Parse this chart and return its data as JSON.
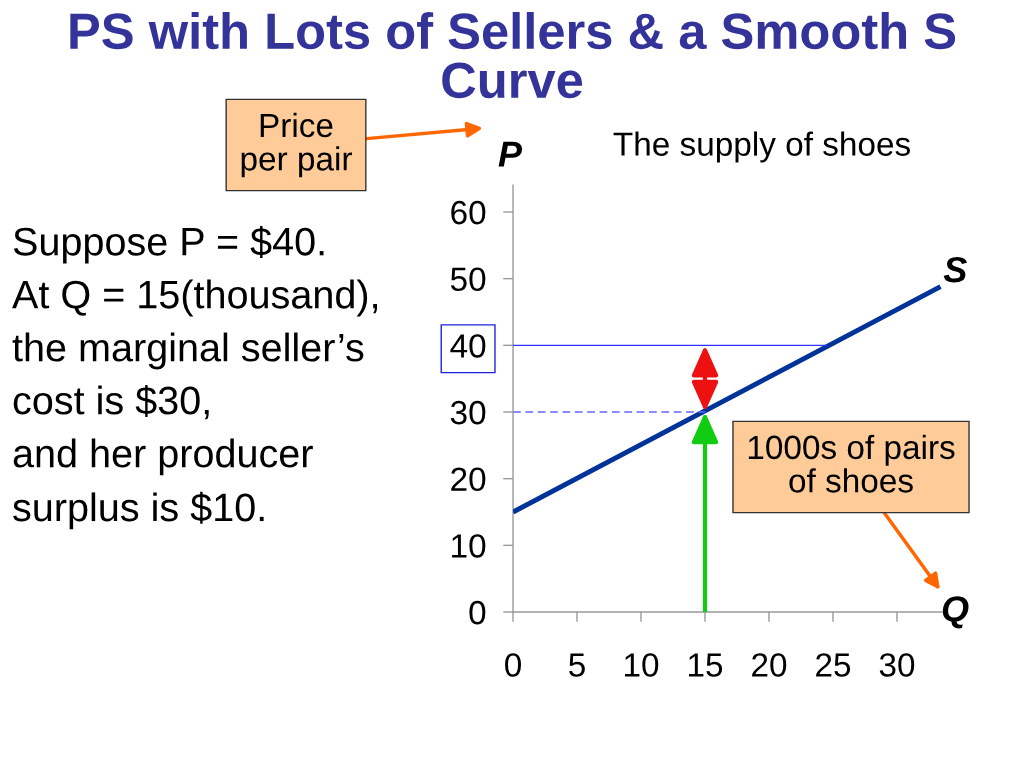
{
  "chart_data": {
    "type": "line",
    "title": "PS with Lots of Sellers & a Smooth S Curve",
    "subtitle": "The supply of shoes",
    "xlabel": "Q",
    "ylabel": "P",
    "annotations": [
      "Price\nper pair",
      "1000s of pairs\nof shoes",
      "Suppose P = $40.\nAt Q = 15(thousand),\nthe marginal seller’s\ncost is $30,\nand her producer\nsurplus is $10."
    ],
    "xlim": [
      0,
      33.5
    ],
    "ylim": [
      0,
      64
    ],
    "xticks": [
      0,
      5,
      10,
      15,
      20,
      25,
      30
    ],
    "yticks": [
      0,
      10,
      20,
      30,
      40,
      50,
      60
    ],
    "series": [
      {
        "name": "S",
        "color": "#003399",
        "x": [
          0,
          33.4
        ],
        "values": [
          15,
          48.8
        ]
      },
      {
        "color": "#3333ff",
        "x": [
          0,
          24.5
        ],
        "values": [
          40,
          40
        ]
      },
      {
        "color": "#6666ff",
        "x": [
          0,
          15
        ],
        "values": [
          30,
          30
        ],
        "line_style": "dashed"
      }
    ]
  }
}
